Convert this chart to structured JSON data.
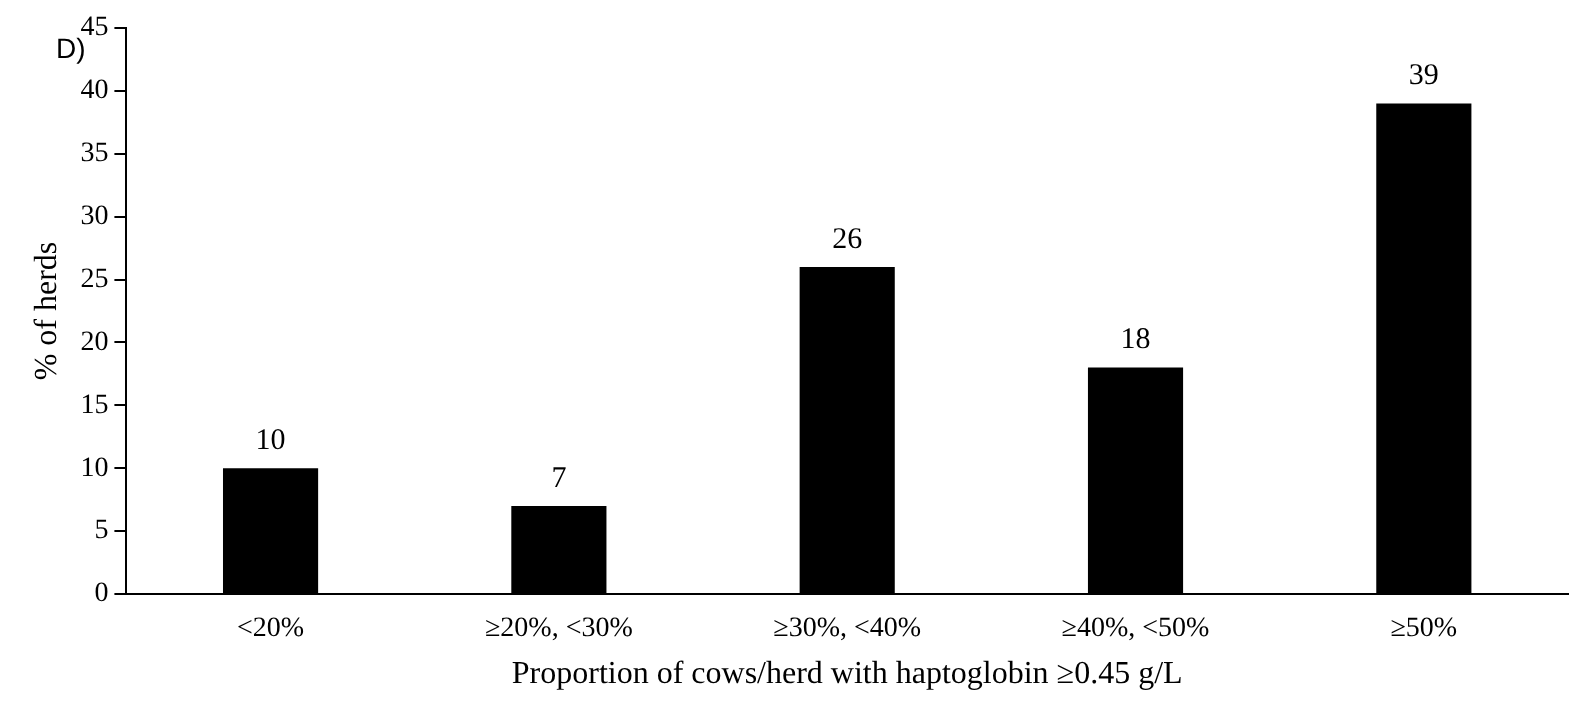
{
  "chart_data": {
    "type": "bar",
    "xlabel": "Proportion of cows/herd with haptoglobin ≥0.45 g/L",
    "ylabel": "% of herds",
    "annotations": [
      "D)"
    ],
    "categories": [
      "<20%",
      "≥20%, <30%",
      "≥30%, <40%",
      "≥40%, <50%",
      "≥50%"
    ],
    "values": [
      10,
      7,
      26,
      18,
      39
    ],
    "color": "#000000",
    "ylim": [
      0,
      45
    ],
    "yticks": [
      0,
      5,
      10,
      15,
      20,
      25,
      30,
      35,
      40,
      45
    ],
    "grid": false,
    "legend": false,
    "data_labels": true
  }
}
